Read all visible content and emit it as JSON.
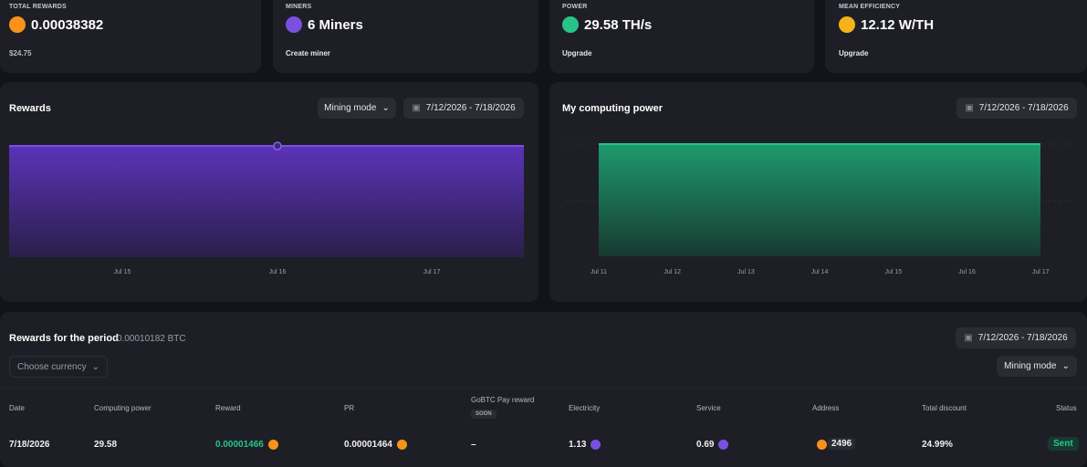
{
  "cards": [
    {
      "label": "TOTAL REWARDS",
      "value": "0.00038382",
      "footer": "$24.75"
    },
    {
      "label": "MINERS",
      "value": "6 Miners",
      "footer": "Create miner"
    },
    {
      "label": "POWER",
      "value": "29.58 TH/s",
      "footer": "Upgrade"
    },
    {
      "label": "MEAN EFFICIENCY",
      "value": "12.12 W/TH",
      "footer": "Upgrade"
    }
  ],
  "rewards_chart": {
    "title": "Rewards",
    "mode": "Mining mode",
    "date_range": "7/12/2026 - 7/18/2026",
    "x_labels": [
      "Jul 15",
      "Jul 16",
      "Jul 17"
    ]
  },
  "power_chart": {
    "title": "My computing power",
    "date_range": "7/12/2026 - 7/18/2026",
    "x_labels": [
      "Jul 11",
      "Jul 12",
      "Jul 13",
      "Jul 14",
      "Jul 15",
      "Jul 16",
      "Jul 17"
    ]
  },
  "table": {
    "title": "Rewards for the period",
    "total": "0.00010182 BTC",
    "currency_select": "Choose currency",
    "date_range": "7/12/2026 - 7/18/2026",
    "mode": "Mining mode",
    "columns": [
      "Date",
      "Computing power",
      "Reward",
      "PR",
      "GoBTC Pay reward",
      "Electricity",
      "Service",
      "Address",
      "Total discount",
      "Status"
    ],
    "soon_badge": "SOON",
    "rows": [
      [
        "7/18/2026",
        "29.58",
        "0.00001466",
        "0.00001464",
        "–",
        "1.13",
        "0.69",
        "2496",
        "24.99%",
        "Sent"
      ]
    ]
  }
}
